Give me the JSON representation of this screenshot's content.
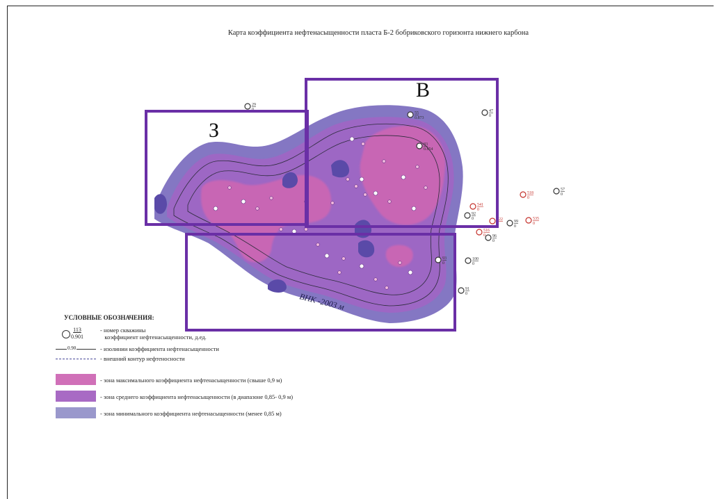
{
  "title": "Карта коэффициента нефтенасыщенности пласта Б-2 бобриковского горизонта нижнего карбона",
  "colors": {
    "outer": "#6e5fb8",
    "mid": "#a066c4",
    "high": "#d366b0",
    "frame": "#6a2fa6",
    "well_dry": "#333333",
    "well_red": "#c4302a"
  },
  "regions": [
    {
      "label": "З"
    },
    {
      "label": "В"
    },
    {
      "label": ""
    }
  ],
  "vnk_label": "ВНК -2003 м",
  "wells_outside": [
    {
      "num": "29",
      "val": "0",
      "color": "dry"
    },
    {
      "num": "47",
      "val": "0",
      "color": "dry"
    },
    {
      "num": "57",
      "val": "0",
      "color": "dry"
    },
    {
      "num": "518",
      "val": "0",
      "color": "red"
    },
    {
      "num": "541",
      "val": "0",
      "color": "red"
    },
    {
      "num": "92",
      "val": "0",
      "color": "dry"
    },
    {
      "num": "99",
      "val": "0",
      "color": "dry"
    },
    {
      "num": "535",
      "val": "0",
      "color": "red"
    },
    {
      "num": "522",
      "val": "0",
      "color": "red"
    },
    {
      "num": "516",
      "val": "0",
      "color": "red"
    },
    {
      "num": "96",
      "val": "0",
      "color": "dry"
    },
    {
      "num": "93",
      "val": "0",
      "color": "dry"
    },
    {
      "num": "100",
      "val": "0",
      "color": "dry"
    },
    {
      "num": "91",
      "val": "0",
      "color": "dry"
    },
    {
      "num": "83",
      "val": "0.854",
      "color": "dry"
    },
    {
      "num": "55",
      "val": "0.873",
      "color": "dry"
    }
  ],
  "legend": {
    "title": "УСЛОВНЫЕ ОБОЗНАЧЕНИЯ:",
    "well": {
      "num": "113",
      "val": "0.901",
      "line1": "-    номер скважины",
      "line2": "коэффициент нефтенасыщенности, д.ед."
    },
    "isoline": {
      "label": "0.90",
      "text": "-  изолинии коэффициента нефтенасыщенности"
    },
    "contour": {
      "text": "-  внешний контур нефтеносности"
    },
    "zones": [
      {
        "color": "#d070b8",
        "text": "- зона максимального коэффициента нефтенасыщенности (свыше 0,9 м)"
      },
      {
        "color": "#a86ac4",
        "text": "- зона среднего коэффициента нефтенасыщенности (в диапазоне 0,85- 0,9 м)"
      },
      {
        "color": "#9a98cc",
        "text": "- зона минимального коэффициента нефтенасыщенности (менее 0,85 м)"
      }
    ]
  }
}
